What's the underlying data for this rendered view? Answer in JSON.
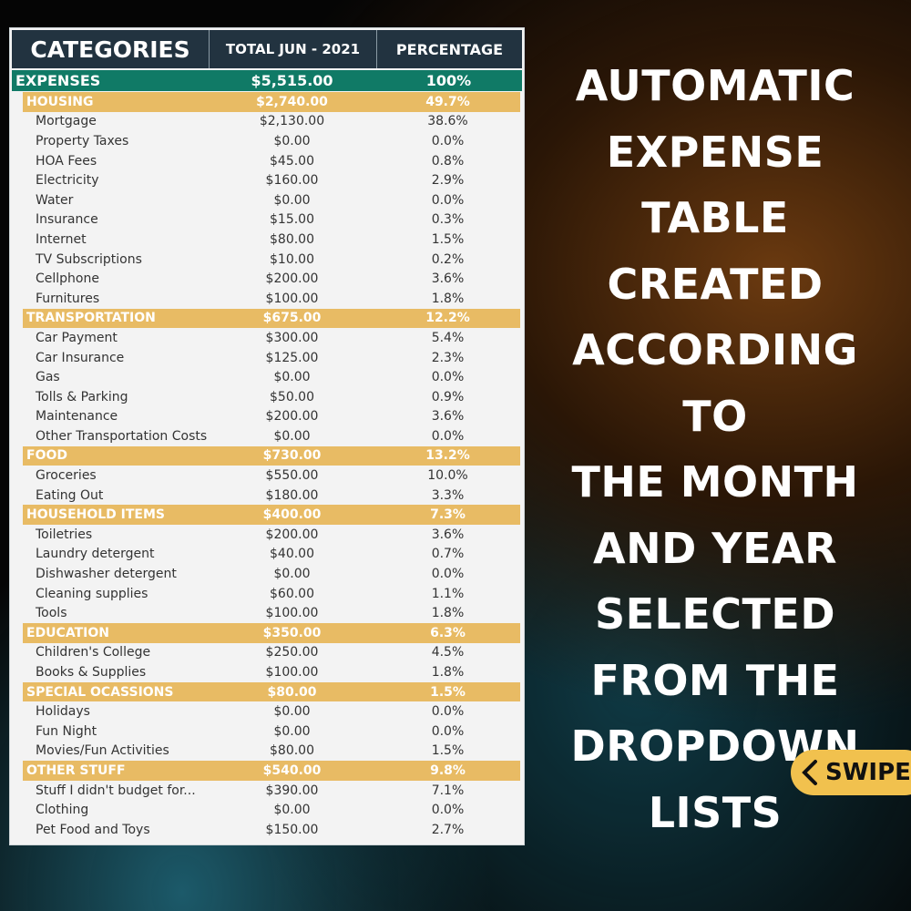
{
  "table": {
    "headers": {
      "categories": "CATEGORIES",
      "total": "TOTAL JUN - 2021",
      "percentage": "PERCENTAGE"
    },
    "expenses": {
      "label": "EXPENSES",
      "total": "$5,515.00",
      "percentage": "100%"
    },
    "groups": [
      {
        "label": "HOUSING",
        "total": "$2,740.00",
        "percentage": "49.7%",
        "items": [
          [
            "Mortgage",
            "$2,130.00",
            "38.6%"
          ],
          [
            "Property Taxes",
            "$0.00",
            "0.0%"
          ],
          [
            "HOA Fees",
            "$45.00",
            "0.8%"
          ],
          [
            "Electricity",
            "$160.00",
            "2.9%"
          ],
          [
            "Water",
            "$0.00",
            "0.0%"
          ],
          [
            "Insurance",
            "$15.00",
            "0.3%"
          ],
          [
            "Internet",
            "$80.00",
            "1.5%"
          ],
          [
            "TV Subscriptions",
            "$10.00",
            "0.2%"
          ],
          [
            "Cellphone",
            "$200.00",
            "3.6%"
          ],
          [
            "Furnitures",
            "$100.00",
            "1.8%"
          ]
        ]
      },
      {
        "label": "TRANSPORTATION",
        "total": "$675.00",
        "percentage": "12.2%",
        "items": [
          [
            "Car Payment",
            "$300.00",
            "5.4%"
          ],
          [
            "Car Insurance",
            "$125.00",
            "2.3%"
          ],
          [
            "Gas",
            "$0.00",
            "0.0%"
          ],
          [
            "Tolls & Parking",
            "$50.00",
            "0.9%"
          ],
          [
            "Maintenance",
            "$200.00",
            "3.6%"
          ],
          [
            "Other Transportation Costs",
            "$0.00",
            "0.0%"
          ]
        ]
      },
      {
        "label": "FOOD",
        "total": "$730.00",
        "percentage": "13.2%",
        "items": [
          [
            "Groceries",
            "$550.00",
            "10.0%"
          ],
          [
            "Eating Out",
            "$180.00",
            "3.3%"
          ]
        ]
      },
      {
        "label": "HOUSEHOLD ITEMS",
        "total": "$400.00",
        "percentage": "7.3%",
        "items": [
          [
            "Toiletries",
            "$200.00",
            "3.6%"
          ],
          [
            "Laundry detergent",
            "$40.00",
            "0.7%"
          ],
          [
            "Dishwasher detergent",
            "$0.00",
            "0.0%"
          ],
          [
            "Cleaning supplies",
            "$60.00",
            "1.1%"
          ],
          [
            "Tools",
            "$100.00",
            "1.8%"
          ]
        ]
      },
      {
        "label": "EDUCATION",
        "total": "$350.00",
        "percentage": "6.3%",
        "items": [
          [
            "Children's College",
            "$250.00",
            "4.5%"
          ],
          [
            "Books & Supplies",
            "$100.00",
            "1.8%"
          ]
        ]
      },
      {
        "label": "SPECIAL OCASSIONS",
        "total": "$80.00",
        "percentage": "1.5%",
        "items": [
          [
            "Holidays",
            "$0.00",
            "0.0%"
          ],
          [
            "Fun Night",
            "$0.00",
            "0.0%"
          ],
          [
            "Movies/Fun Activities",
            "$80.00",
            "1.5%"
          ]
        ]
      },
      {
        "label": "OTHER STUFF",
        "total": "$540.00",
        "percentage": "9.8%",
        "items": [
          [
            "Stuff I didn't budget for...",
            "$390.00",
            "7.1%"
          ],
          [
            "Clothing",
            "$0.00",
            "0.0%"
          ],
          [
            "Pet Food and Toys",
            "$150.00",
            "2.7%"
          ]
        ]
      }
    ]
  },
  "headline": [
    "AUTOMATIC",
    "EXPENSE TABLE",
    "CREATED",
    "ACCORDING TO",
    "THE MONTH",
    "AND YEAR",
    "SELECTED",
    "FROM THE",
    "DROPDOWN",
    "LISTS"
  ],
  "swipe": {
    "label": "SWIPE",
    "icon": "chevron-left-icon"
  },
  "colors": {
    "header": "#223340",
    "expenses": "#107a66",
    "category": "#e8bb64",
    "swipe": "#f1c14e"
  }
}
